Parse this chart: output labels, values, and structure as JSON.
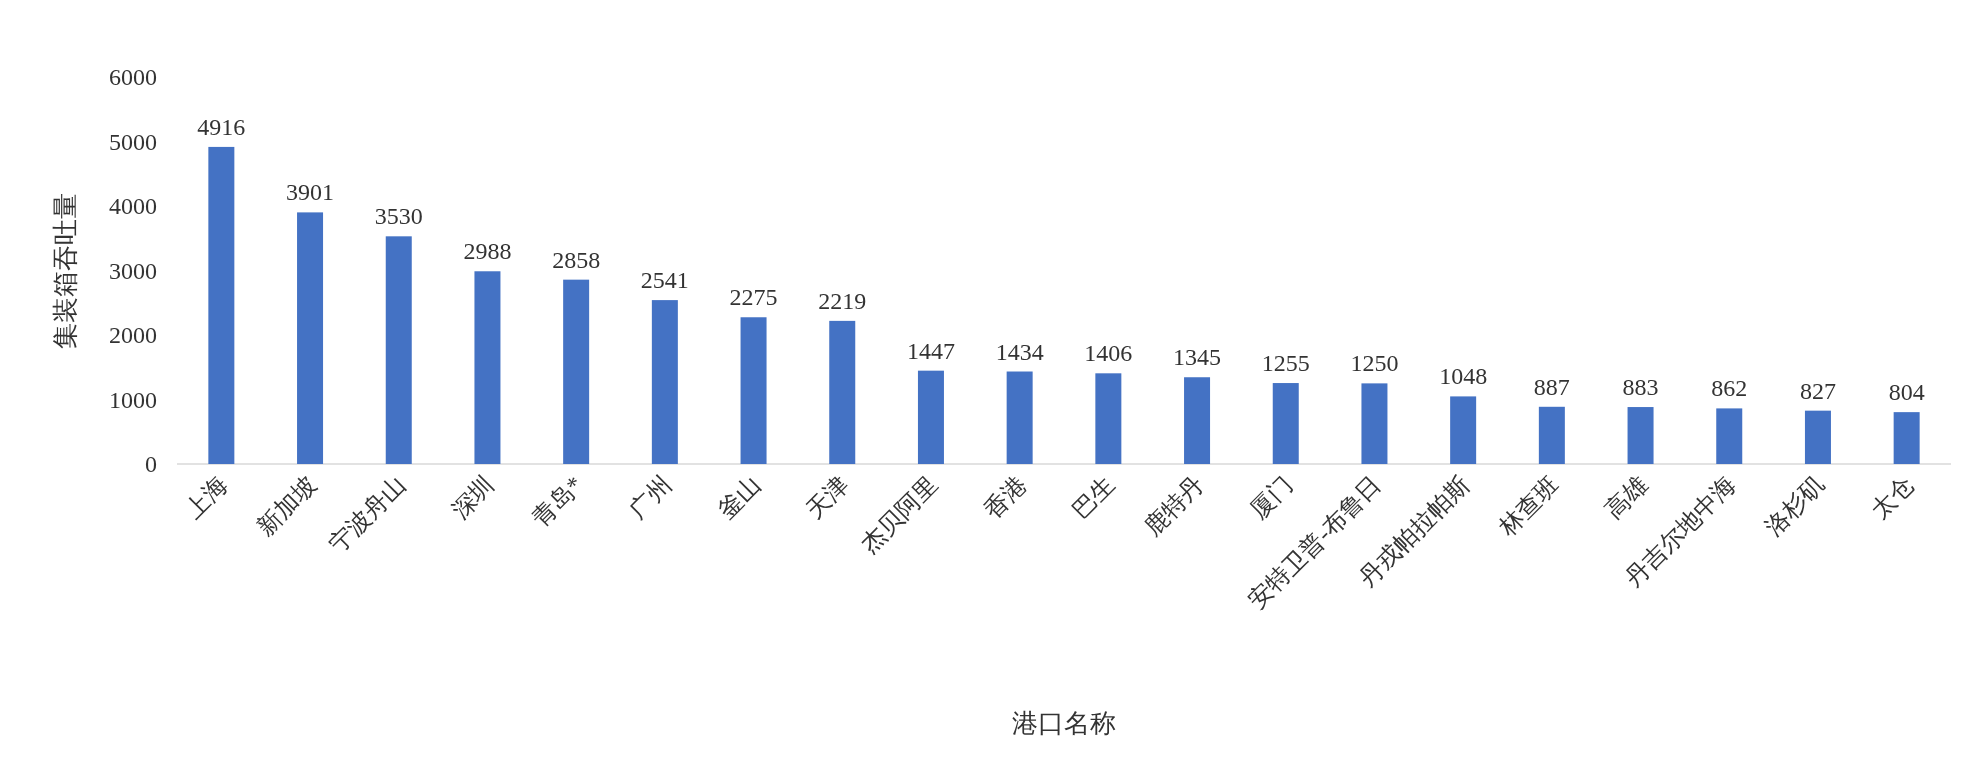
{
  "chart_data": {
    "type": "bar",
    "xlabel": "港口名称",
    "ylabel": "集装箱吞吐量",
    "categories": [
      "上海",
      "新加坡",
      "宁波舟山",
      "深圳",
      "青岛*",
      "广州",
      "釜山",
      "天津",
      "杰贝阿里",
      "香港",
      "巴生",
      "鹿特丹",
      "厦门",
      "安特卫普-布鲁日",
      "丹戎帕拉帕斯",
      "林查班",
      "高雄",
      "丹吉尔地中海",
      "洛杉矶",
      "太仓"
    ],
    "values": [
      4916,
      3901,
      3530,
      2988,
      2858,
      2541,
      2275,
      2219,
      1447,
      1434,
      1406,
      1345,
      1255,
      1250,
      1048,
      887,
      883,
      862,
      827,
      804
    ],
    "color": "#4472c4",
    "ylim": [
      0,
      6000
    ],
    "yticks": [
      0,
      1000,
      2000,
      3000,
      4000,
      5000,
      6000
    ],
    "data_labels": true
  }
}
